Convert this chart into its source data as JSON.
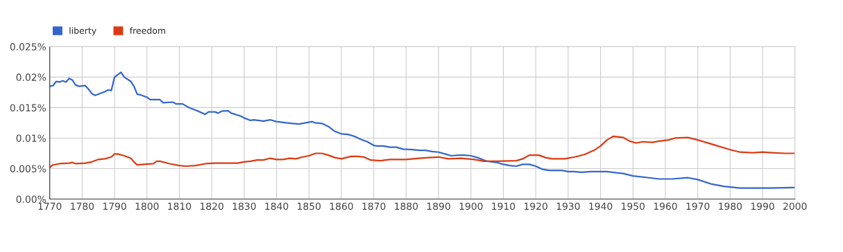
{
  "chart_data": {
    "type": "line",
    "legend": "top left",
    "grid": true,
    "marker": "none",
    "line_style": "solid",
    "xlim": [
      1770,
      2000
    ],
    "xticks": [
      1770,
      1780,
      1790,
      1800,
      1810,
      1820,
      1830,
      1840,
      1850,
      1860,
      1870,
      1880,
      1890,
      1900,
      1910,
      1920,
      1930,
      1940,
      1950,
      1960,
      1970,
      1980,
      1990,
      2000
    ],
    "ylim": [
      0,
      0.025
    ],
    "yticks": [
      {
        "value": 0,
        "label": "0.00%"
      },
      {
        "value": 0.005,
        "label": "0.005%"
      },
      {
        "value": 0.01,
        "label": "0.01%"
      },
      {
        "value": 0.015,
        "label": "0.015%"
      },
      {
        "value": 0.02,
        "label": "0.02%"
      },
      {
        "value": 0.025,
        "label": "0.025%"
      }
    ],
    "series": [
      {
        "name": "liberty",
        "color": "#3366cc",
        "x": [
          1770,
          1771,
          1772,
          1773,
          1774,
          1775,
          1776,
          1777,
          1778,
          1779,
          1781,
          1782,
          1783,
          1784,
          1786,
          1787,
          1788,
          1789,
          1790,
          1792,
          1793,
          1795,
          1796,
          1797,
          1798,
          1800,
          1801,
          1804,
          1805,
          1808,
          1809,
          1811,
          1813,
          1815,
          1818,
          1819,
          1821,
          1822,
          1823,
          1825,
          1826,
          1829,
          1830,
          1832,
          1833,
          1836,
          1838,
          1840,
          1843,
          1845,
          1847,
          1849,
          1851,
          1852,
          1854,
          1856,
          1858,
          1860,
          1862,
          1864,
          1866,
          1868,
          1870,
          1871,
          1873,
          1875,
          1877,
          1879,
          1882,
          1884,
          1886,
          1888,
          1890,
          1892,
          1894,
          1896,
          1898,
          1900,
          1902,
          1905,
          1908,
          1910,
          1912,
          1914,
          1916,
          1918,
          1920,
          1922,
          1924,
          1928,
          1930,
          1932,
          1934,
          1937,
          1942,
          1945,
          1947,
          1950,
          1955,
          1958,
          1962,
          1967,
          1970,
          1974,
          1978,
          1983,
          1990,
          1992,
          2000
        ],
        "values": [
          0.0185,
          0.0186,
          0.0193,
          0.0192,
          0.0194,
          0.0192,
          0.0198,
          0.0195,
          0.0187,
          0.0185,
          0.0186,
          0.018,
          0.0173,
          0.017,
          0.0174,
          0.0176,
          0.0179,
          0.0178,
          0.02,
          0.0208,
          0.02,
          0.0193,
          0.0185,
          0.0172,
          0.0171,
          0.0167,
          0.0163,
          0.0163,
          0.0158,
          0.0159,
          0.0156,
          0.0156,
          0.015,
          0.0146,
          0.0139,
          0.0143,
          0.0143,
          0.0141,
          0.0144,
          0.0145,
          0.0141,
          0.0136,
          0.0133,
          0.0129,
          0.013,
          0.0128,
          0.013,
          0.0127,
          0.0125,
          0.0124,
          0.0123,
          0.0125,
          0.0127,
          0.0125,
          0.0124,
          0.0119,
          0.0111,
          0.0107,
          0.0106,
          0.0103,
          0.0098,
          0.0094,
          0.0088,
          0.0087,
          0.0087,
          0.0085,
          0.0085,
          0.0082,
          0.0081,
          0.008,
          0.008,
          0.0078,
          0.0077,
          0.0074,
          0.0071,
          0.0072,
          0.0072,
          0.0071,
          0.0068,
          0.0062,
          0.006,
          0.0057,
          0.0055,
          0.0054,
          0.0057,
          0.0057,
          0.0054,
          0.0049,
          0.0047,
          0.0047,
          0.0045,
          0.0045,
          0.0044,
          0.0045,
          0.0045,
          0.0043,
          0.0042,
          0.0038,
          0.0035,
          0.0033,
          0.0033,
          0.0035,
          0.0032,
          0.0025,
          0.0021,
          0.0018,
          0.0018,
          0.0018,
          0.0019
        ]
      },
      {
        "name": "freedom",
        "color": "#dc3912",
        "x": [
          1770,
          1771,
          1773,
          1776,
          1777,
          1778,
          1781,
          1783,
          1785,
          1787,
          1789,
          1790,
          1791,
          1793,
          1795,
          1796,
          1797,
          1799,
          1802,
          1803,
          1804,
          1807,
          1810,
          1812,
          1815,
          1818,
          1821,
          1825,
          1828,
          1830,
          1832,
          1834,
          1836,
          1838,
          1840,
          1842,
          1844,
          1846,
          1848,
          1850,
          1852,
          1854,
          1856,
          1858,
          1860,
          1863,
          1865,
          1867,
          1869,
          1872,
          1875,
          1878,
          1880,
          1884,
          1887,
          1890,
          1893,
          1897,
          1901,
          1904,
          1908,
          1914,
          1916,
          1918,
          1921,
          1923,
          1925,
          1929,
          1932,
          1935,
          1938,
          1940,
          1942,
          1944,
          1947,
          1949,
          1951,
          1953,
          1956,
          1958,
          1961,
          1963,
          1967,
          1970,
          1975,
          1980,
          1983,
          1987,
          1990,
          1993,
          1997,
          2000
        ],
        "values": [
          0.0052,
          0.0056,
          0.0058,
          0.0059,
          0.006,
          0.0058,
          0.0059,
          0.0061,
          0.0065,
          0.0066,
          0.0069,
          0.0074,
          0.0074,
          0.0071,
          0.0067,
          0.0061,
          0.0056,
          0.0057,
          0.0058,
          0.0062,
          0.0062,
          0.0058,
          0.0055,
          0.0054,
          0.0055,
          0.0058,
          0.0059,
          0.0059,
          0.0059,
          0.0061,
          0.0062,
          0.0064,
          0.0064,
          0.0067,
          0.0065,
          0.0065,
          0.0067,
          0.0066,
          0.0069,
          0.0071,
          0.0075,
          0.0075,
          0.0072,
          0.0068,
          0.0066,
          0.007,
          0.007,
          0.0069,
          0.0064,
          0.0063,
          0.0065,
          0.0065,
          0.0065,
          0.0067,
          0.0068,
          0.0069,
          0.0066,
          0.0067,
          0.0065,
          0.0062,
          0.0062,
          0.0063,
          0.0066,
          0.0072,
          0.0072,
          0.0068,
          0.0066,
          0.0066,
          0.0069,
          0.0073,
          0.008,
          0.0087,
          0.0097,
          0.0103,
          0.0101,
          0.0095,
          0.0092,
          0.0094,
          0.0093,
          0.0095,
          0.0097,
          0.01,
          0.0101,
          0.0097,
          0.0089,
          0.0081,
          0.0077,
          0.0076,
          0.0077,
          0.0076,
          0.0075,
          0.0075
        ]
      }
    ]
  }
}
